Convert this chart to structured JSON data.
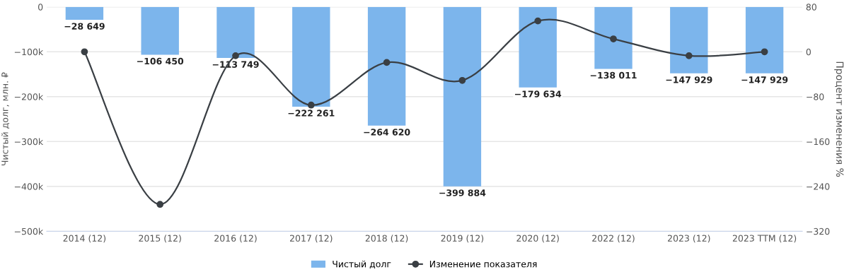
{
  "chart_data": {
    "type": "bar",
    "ylabel": "Чистый долг, млн. ₽",
    "y2label": "Процент изменения %",
    "categories": [
      "2014 (12)",
      "2015 (12)",
      "2016 (12)",
      "2017 (12)",
      "2018 (12)",
      "2019 (12)",
      "2020 (12)",
      "2022 (12)",
      "2023 (12)",
      "2023 TTM (12)"
    ],
    "series": [
      {
        "name": "Чистый долг",
        "color": "#7cb5ec",
        "values": [
          -28649,
          -106450,
          -113749,
          -222261,
          -264620,
          -399884,
          -179634,
          -138011,
          -147929,
          -147929
        ],
        "value_labels": [
          "−28 649",
          "−106 450",
          "−113 749",
          "−222 261",
          "−264 620",
          "−399 884",
          "−179 634",
          "−138 011",
          "−147 929",
          "−147 929"
        ]
      },
      {
        "name": "Изменение показателя",
        "type": "line",
        "axis": "y2",
        "color": "#3a3f44",
        "marker": "circle",
        "values": [
          0,
          -272,
          -7,
          -95,
          -19,
          -51,
          55,
          23,
          -7,
          0
        ]
      }
    ],
    "ylim": [
      -500000,
      0
    ],
    "yticks": [
      {
        "value": -500000,
        "label": "−500k"
      },
      {
        "value": -400000,
        "label": "−400k"
      },
      {
        "value": -300000,
        "label": "−300k"
      },
      {
        "value": -200000,
        "label": "−200k"
      },
      {
        "value": -100000,
        "label": "−100k"
      },
      0
    ],
    "y2lim": [
      -320,
      80
    ],
    "y2ticks": [
      {
        "value": -320,
        "label": "−320"
      },
      {
        "value": -240,
        "label": "−240"
      },
      {
        "value": -160,
        "label": "−160"
      },
      {
        "value": -80,
        "label": "−80"
      },
      0,
      80
    ],
    "grid": "y",
    "legend": "bottom"
  }
}
